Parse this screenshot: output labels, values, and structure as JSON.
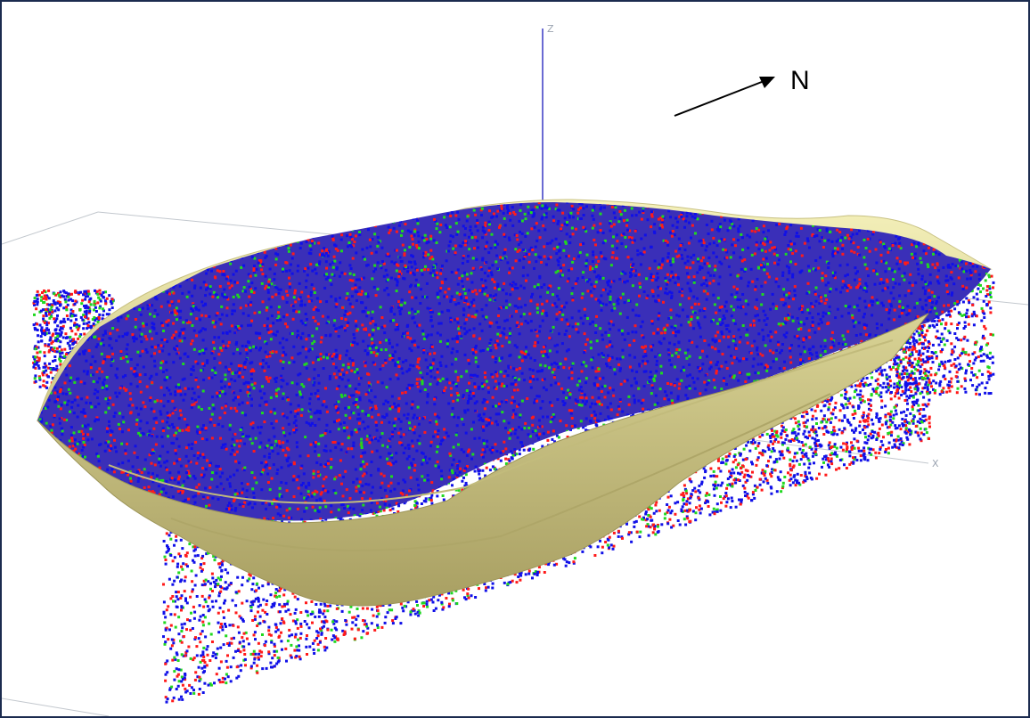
{
  "viewer": {
    "axes": {
      "z_label": "Z",
      "x_label": "X"
    },
    "north_label": "N"
  },
  "colors": {
    "pit_shell_light": "#f3efb3",
    "pit_shell_mid": "#d8d295",
    "pit_shell_dark": "#b6ad6c",
    "z_axis": "#2c2cc0",
    "axis_gray": "#b8bec6",
    "frame": "#1b2b4f",
    "block_colors": [
      "#1010e8",
      "#ff1a1a",
      "#20d820"
    ]
  },
  "icons": {
    "north_arrow": "arrow-icon"
  }
}
